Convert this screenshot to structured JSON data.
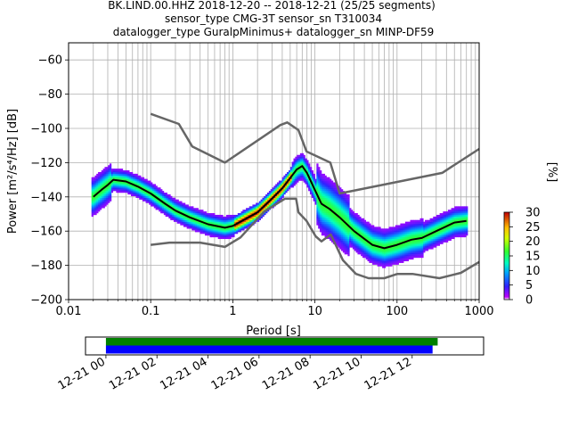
{
  "title_lines": [
    "BK.LIND.00.HHZ   2018-12-20 -- 2018-12-21  (25/25 segments)",
    "sensor_type CMG-3T sensor_sn T310034",
    "datalogger_type GuralpMinimus+ datalogger_sn MINP-DF59"
  ],
  "chart_data": [
    {
      "type": "heatmap",
      "xlabel": "Period [s]",
      "ylabel": "Power [m²/s⁴/Hz] [dB]",
      "xscale": "log",
      "xlim": [
        0.01,
        1000
      ],
      "ylim": [
        -200,
        -50
      ],
      "xticks": [
        0.01,
        0.1,
        1,
        10,
        100,
        1000
      ],
      "xtick_labels": [
        "0.01",
        "0.1",
        "1",
        "10",
        "100",
        "1000"
      ],
      "yticks": [
        -60,
        -80,
        -100,
        -120,
        -140,
        -160,
        -180,
        -200
      ],
      "ytick_labels": [
        "−60",
        "−80",
        "−100",
        "−120",
        "−140",
        "−160",
        "−180",
        "−200"
      ],
      "grid": true,
      "colorbar": {
        "label": "[%]",
        "range": [
          0,
          30
        ],
        "ticks": [
          0,
          5,
          10,
          15,
          20,
          25,
          30
        ],
        "tick_labels": [
          "0",
          "5",
          "10",
          "15",
          "20",
          "25",
          "30"
        ]
      },
      "series": [
        {
          "role": "mode",
          "color": "#000000",
          "x": [
            0.02,
            0.025,
            0.03,
            0.035,
            0.05,
            0.07,
            0.1,
            0.15,
            0.2,
            0.3,
            0.5,
            0.8,
            1,
            2,
            3,
            4,
            5,
            6,
            7,
            8,
            10,
            12,
            15,
            20,
            30,
            50,
            70,
            100,
            150,
            200,
            300,
            500,
            700
          ],
          "y": [
            -140,
            -136,
            -133,
            -130,
            -131,
            -134,
            -138,
            -144,
            -148,
            -152,
            -156,
            -158,
            -157,
            -149,
            -141,
            -135,
            -129,
            -124,
            -122,
            -126,
            -136,
            -144,
            -147,
            -152,
            -160,
            -168,
            -170,
            -168,
            -165,
            -164,
            -160,
            -155,
            -154
          ]
        },
        {
          "role": "noise-model-high",
          "color": "#666666",
          "x": [
            0.1,
            0.22,
            0.32,
            0.8,
            3.8,
            4.6,
            6.3,
            7.9,
            15.4,
            20,
            354.8,
            1000
          ],
          "y": [
            -91.5,
            -97.4,
            -110.5,
            -120,
            -98,
            -96.5,
            -101,
            -113.5,
            -120,
            -138,
            -126,
            -112
          ]
        },
        {
          "role": "noise-model-low",
          "color": "#666666",
          "x": [
            0.1,
            0.17,
            0.4,
            0.8,
            1.24,
            2.4,
            4.3,
            5.9,
            6.3,
            7.9,
            10.2,
            12,
            15.6,
            21.9,
            31.6,
            45,
            70,
            101,
            154,
            328,
            600,
            1000
          ],
          "y": [
            -168,
            -166.7,
            -166.7,
            -169.2,
            -163.7,
            -148.6,
            -141.1,
            -141.1,
            -149,
            -154,
            -163,
            -166,
            -162,
            -177,
            -185,
            -187.5,
            -187.5,
            -185,
            -185,
            -187.5,
            -184.4,
            -178
          ]
        }
      ]
    },
    {
      "type": "bar",
      "role": "data-availability",
      "xlim_hours": [
        -0.8,
        14.8
      ],
      "xtick_labels": [
        "12-21 00",
        "12-21 02",
        "12-21 04",
        "12-21 06",
        "12-21 08",
        "12-21 10",
        "12-21 12"
      ],
      "xtick_hours": [
        0,
        2,
        4,
        6,
        8,
        10,
        12
      ],
      "bars": [
        {
          "start_hour": 0,
          "end_hour": 13.0,
          "color": "#008000"
        },
        {
          "start_hour": 0,
          "end_hour": 12.8,
          "color": "#0000ff"
        }
      ]
    }
  ]
}
